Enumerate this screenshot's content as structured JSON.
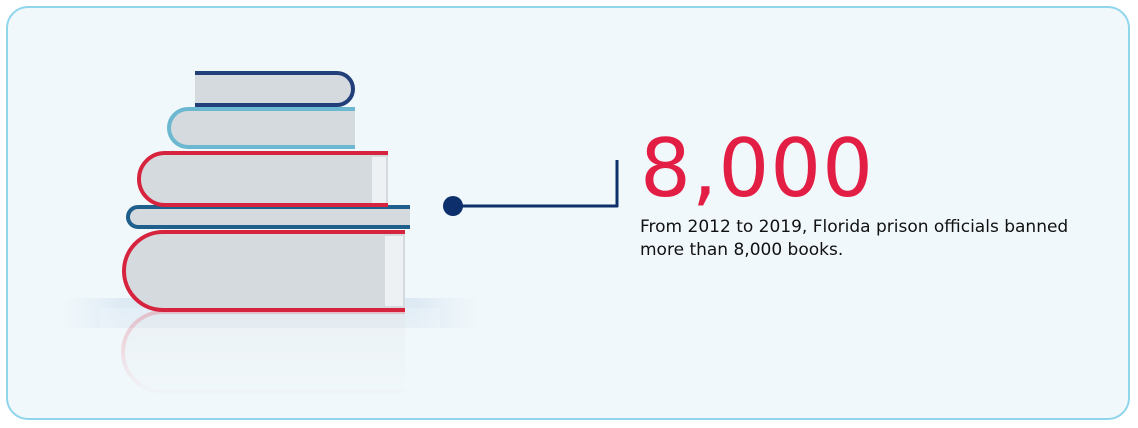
{
  "stat": {
    "number": "8,000",
    "description": "From 2012 to 2019, Florida prison officials banned more than 8,000 books."
  }
}
